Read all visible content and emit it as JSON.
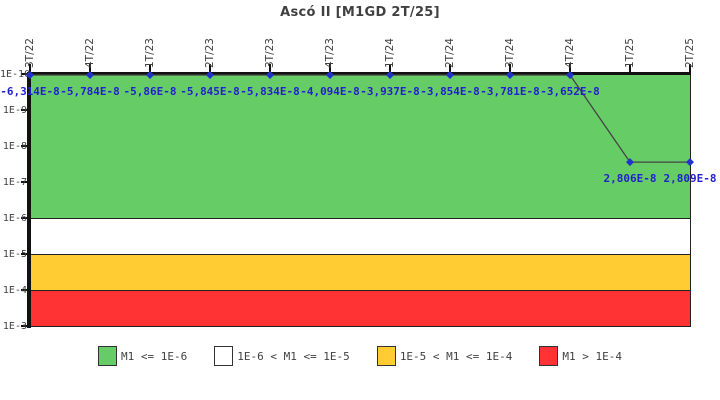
{
  "title": "Ascó II [M1GD 2T/25]",
  "chart_data": {
    "type": "line",
    "title": "Ascó II [M1GD 2T/25]",
    "x_categories": [
      "3T/22",
      "4T/22",
      "1T/23",
      "2T/23",
      "3T/23",
      "4T/23",
      "1T/24",
      "2T/24",
      "3T/24",
      "4T/24",
      "1T/25",
      "2T/25"
    ],
    "series": [
      {
        "name": "M1",
        "values": [
          -6.314e-08,
          -5.784e-08,
          -5.86e-08,
          -5.845e-08,
          -5.834e-08,
          -4.094e-08,
          -3.937e-08,
          -3.854e-08,
          -3.781e-08,
          -3.652e-08,
          2.806e-08,
          2.809e-08
        ],
        "point_labels": [
          "-6,314E-8",
          "-5,784E-8",
          "-5,86E-8",
          "-5,845E-8",
          "-5,834E-8",
          "-4,094E-8",
          "-3,937E-8",
          "-3,854E-8",
          "-3,781E-8",
          "-3,652E-8",
          "2,806E-8",
          "2,809E-8"
        ]
      }
    ],
    "y_axis": {
      "scale": "log-inverted",
      "top": "1E-10",
      "bottom": "1E-3",
      "ticks": [
        "1E-10",
        "1E-9",
        "1E-8",
        "1E-7",
        "1E-6",
        "1E-5",
        "1E-4",
        "1E-3"
      ]
    },
    "bands": [
      {
        "from": "1E-10",
        "to": "1E-6",
        "color": "#66CC66",
        "label": "M1 <= 1E-6"
      },
      {
        "from": "1E-6",
        "to": "1E-5",
        "color": "#FFFFFF",
        "label": "1E-6 < M1 <= 1E-5"
      },
      {
        "from": "1E-5",
        "to": "1E-4",
        "color": "#FFCC33",
        "label": "1E-5 < M1 <= 1E-4"
      },
      {
        "from": "1E-4",
        "to": "1E-3",
        "color": "#FF3333",
        "label": "M1 > 1E-4"
      }
    ],
    "colors": {
      "marker": "#2233CC",
      "value_label": "#2222CC",
      "line": "#444444",
      "axis": "#111111",
      "text": "#404040",
      "background": "#FFFFFF"
    }
  },
  "legend": {
    "items": [
      {
        "label": "M1 <= 1E-6",
        "color": "#66CC66"
      },
      {
        "label": "1E-6 < M1 <= 1E-5",
        "color": "#FFFFFF"
      },
      {
        "label": "1E-5 < M1 <= 1E-4",
        "color": "#FFCC33"
      },
      {
        "label": "M1 > 1E-4",
        "color": "#FF3333"
      }
    ]
  }
}
